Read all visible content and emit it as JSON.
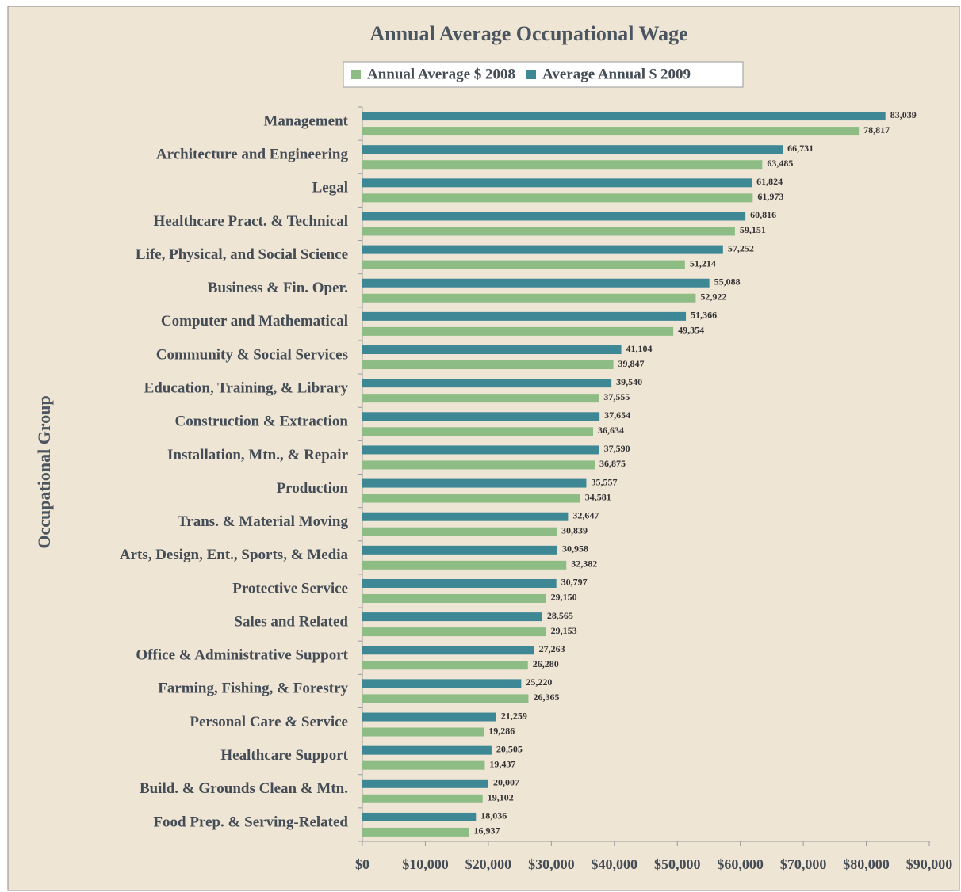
{
  "chart_data": {
    "type": "barh",
    "title": "Annual Average Occupational  Wage",
    "y_label": "Occupational Group",
    "categories": [
      "Management",
      "Architecture and Engineering",
      "Legal",
      "Healthcare Pract. & Technical",
      "Life, Physical, and Social Science",
      "Business & Fin. Oper.",
      "Computer and Mathematical",
      "Community & Social Services",
      "Education, Training, & Library",
      "Construction & Extraction",
      "Installation, Mtn., & Repair",
      "Production",
      "Trans. & Material Moving",
      "Arts, Design, Ent., Sports, & Media",
      "Protective Service",
      "Sales and Related",
      "Office & Administrative Support",
      "Farming, Fishing, & Forestry",
      "Personal Care & Service",
      "Healthcare Support",
      "Build. & Grounds Clean & Mtn.",
      "Food Prep. & Serving-Related"
    ],
    "series": [
      {
        "name": "Annual Average $ 2008",
        "color": "#8dbd84",
        "values": [
          78817,
          63485,
          61973,
          59151,
          51214,
          52922,
          49354,
          39847,
          37555,
          36634,
          36875,
          34581,
          30839,
          32382,
          29150,
          29153,
          26280,
          26365,
          19286,
          19437,
          19102,
          16937
        ],
        "value_labels": [
          "78,817",
          "63,485",
          "61,973",
          "59,151",
          "51,214",
          "52,922",
          "49,354",
          "39,847",
          "37,555",
          "36,634",
          "36,875",
          "34,581",
          "30,839",
          "32,382",
          "29,150",
          "29,153",
          "26,280",
          "26,365",
          "19,286",
          "19,437",
          "19,102",
          "16,937"
        ]
      },
      {
        "name": "Average Annual $ 2009",
        "color": "#3e8895",
        "values": [
          83039,
          66731,
          61824,
          60816,
          57252,
          55088,
          51366,
          41104,
          39540,
          37654,
          37590,
          35557,
          32647,
          30958,
          30797,
          28565,
          27263,
          25220,
          21259,
          20505,
          20007,
          18036
        ],
        "value_labels": [
          "83,039",
          "66,731",
          "61,824",
          "60,816",
          "57,252",
          "55,088",
          "51,366",
          "41,104",
          "39,540",
          "37,654",
          "37,590",
          "35,557",
          "32,647",
          "30,958",
          "30,797",
          "28,565",
          "27,263",
          "25,220",
          "21,259",
          "20,505",
          "20,007",
          "18,036"
        ]
      }
    ],
    "xlim": [
      0,
      90000
    ],
    "xticks": [
      {
        "value": 0,
        "label": "$0"
      },
      {
        "value": 10000,
        "label": "$10,000"
      },
      {
        "value": 20000,
        "label": "$20,000"
      },
      {
        "value": 30000,
        "label": "$30,000"
      },
      {
        "value": 40000,
        "label": "$40,000"
      },
      {
        "value": 50000,
        "label": "$50,000"
      },
      {
        "value": 60000,
        "label": "$60,000"
      },
      {
        "value": 70000,
        "label": "$70,000"
      },
      {
        "value": 80000,
        "label": "$80,000"
      },
      {
        "value": 90000,
        "label": "$90,000"
      }
    ],
    "legend": "top"
  }
}
